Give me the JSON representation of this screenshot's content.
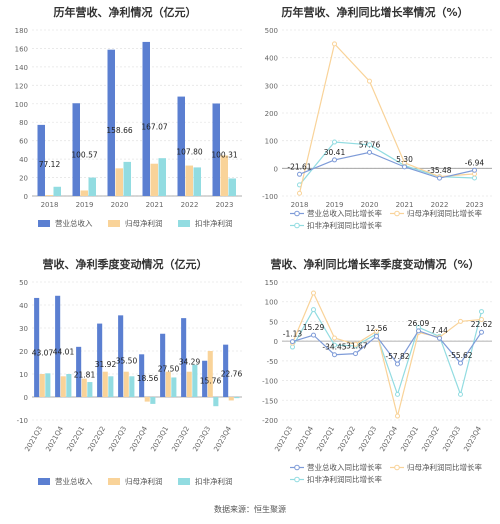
{
  "footer": "数据来源：恒生聚源",
  "chart_data": [
    {
      "type": "bar",
      "title": "历年营收、净利情况（亿元）",
      "categories": [
        "2018",
        "2019",
        "2020",
        "2021",
        "2022",
        "2023"
      ],
      "ylim": [
        0,
        180
      ],
      "yticks": [
        0,
        20,
        40,
        60,
        80,
        100,
        120,
        140,
        160,
        180
      ],
      "grid": true,
      "legend_position": "bottom",
      "series": [
        {
          "name": "营业总收入",
          "color": "#5b7fd1",
          "values": [
            77.12,
            100.57,
            158.66,
            167.07,
            107.8,
            100.31
          ],
          "labels": [
            "77.12",
            "100.57",
            "158.66",
            "167.07",
            "107.80",
            "100.31"
          ]
        },
        {
          "name": "归母净利润",
          "color": "#f9d399",
          "values": [
            1,
            6,
            30,
            35,
            33,
            44
          ]
        },
        {
          "name": "扣非净利润",
          "color": "#92dce1",
          "values": [
            10,
            20,
            37,
            41,
            31,
            19
          ]
        }
      ]
    },
    {
      "type": "line",
      "title": "历年营收、净利同比增长率情况（%）",
      "categories": [
        "2018",
        "2019",
        "2020",
        "2021",
        "2022",
        "2023"
      ],
      "ylim": [
        -100,
        500
      ],
      "yticks": [
        -100,
        0,
        100,
        200,
        300,
        400,
        500
      ],
      "grid": true,
      "legend_position": "bottom",
      "series": [
        {
          "name": "营业总收入同比增长率",
          "color": "#7e9bd8",
          "values": [
            -21.61,
            30.41,
            57.76,
            5.3,
            -35.48,
            -6.94
          ],
          "labels": [
            "-21.61",
            "30.41",
            "57.76",
            "5.30",
            "-35.48",
            "-6.94"
          ]
        },
        {
          "name": "归母净利润同比增长率",
          "color": "#f9d399",
          "values": [
            -90,
            450,
            315,
            20,
            -30,
            -20
          ]
        },
        {
          "name": "扣非净利润同比增长率",
          "color": "#92dce1",
          "values": [
            -60,
            95,
            85,
            10,
            -30,
            -35
          ]
        }
      ]
    },
    {
      "type": "bar",
      "title": "营收、净利季度变动情况（亿元）",
      "categories": [
        "2021Q3",
        "2021Q4",
        "2022Q1",
        "2022Q2",
        "2022Q3",
        "2022Q4",
        "2023Q1",
        "2023Q2",
        "2023Q3",
        "2023Q4"
      ],
      "ylim": [
        -10,
        50
      ],
      "yticks": [
        -10,
        0,
        10,
        20,
        30,
        40,
        50
      ],
      "grid": true,
      "legend_position": "bottom",
      "series": [
        {
          "name": "营业总收入",
          "color": "#5b7fd1",
          "values": [
            43.07,
            44.01,
            21.81,
            31.92,
            35.5,
            18.56,
            27.5,
            34.29,
            15.76,
            22.76
          ],
          "labels": [
            "43.07",
            "44.01",
            "21.81",
            "31.92",
            "35.50",
            "18.56",
            "27.50",
            "34.29",
            "15.76",
            "22.76"
          ]
        },
        {
          "name": "归母净利润",
          "color": "#f9d399",
          "values": [
            10.0,
            9.0,
            8.0,
            11.0,
            11.0,
            -2.0,
            11.0,
            11.0,
            20.0,
            -1.5
          ]
        },
        {
          "name": "扣非净利润",
          "color": "#92dce1",
          "values": [
            10.3,
            10.0,
            6.5,
            9.0,
            9.0,
            -3.0,
            8.5,
            14.0,
            -4.0,
            -0.5
          ]
        }
      ]
    },
    {
      "type": "line",
      "title": "营收、净利同比增长率季度变动情况（%）",
      "categories": [
        "2021Q3",
        "2021Q4",
        "2022Q1",
        "2022Q2",
        "2022Q3",
        "2022Q4",
        "2023Q1",
        "2023Q2",
        "2023Q3",
        "2023Q4"
      ],
      "ylim": [
        -200,
        150
      ],
      "yticks": [
        -200,
        -150,
        -100,
        -50,
        0,
        50,
        100,
        150
      ],
      "grid": true,
      "legend_position": "bottom",
      "series": [
        {
          "name": "营业总收入同比增长率",
          "color": "#7e9bd8",
          "values": [
            -1.13,
            15.29,
            -34.45,
            -31.67,
            12.56,
            -57.82,
            26.09,
            7.44,
            -55.62,
            22.62
          ],
          "labels": [
            "-1.13",
            "15.29",
            "-34.45",
            "-31.67",
            "12.56",
            "-57.82",
            "26.09",
            "7.44",
            "-55.62",
            "22.62"
          ]
        },
        {
          "name": "归母净利润同比增长率",
          "color": "#f9d399",
          "values": [
            -5,
            122,
            8,
            -8,
            25,
            -190,
            22,
            10,
            50,
            55
          ]
        },
        {
          "name": "扣非净利润同比增长率",
          "color": "#92dce1",
          "values": [
            -15,
            80,
            -10,
            -12,
            18,
            -135,
            35,
            12,
            -135,
            75
          ]
        }
      ]
    }
  ]
}
